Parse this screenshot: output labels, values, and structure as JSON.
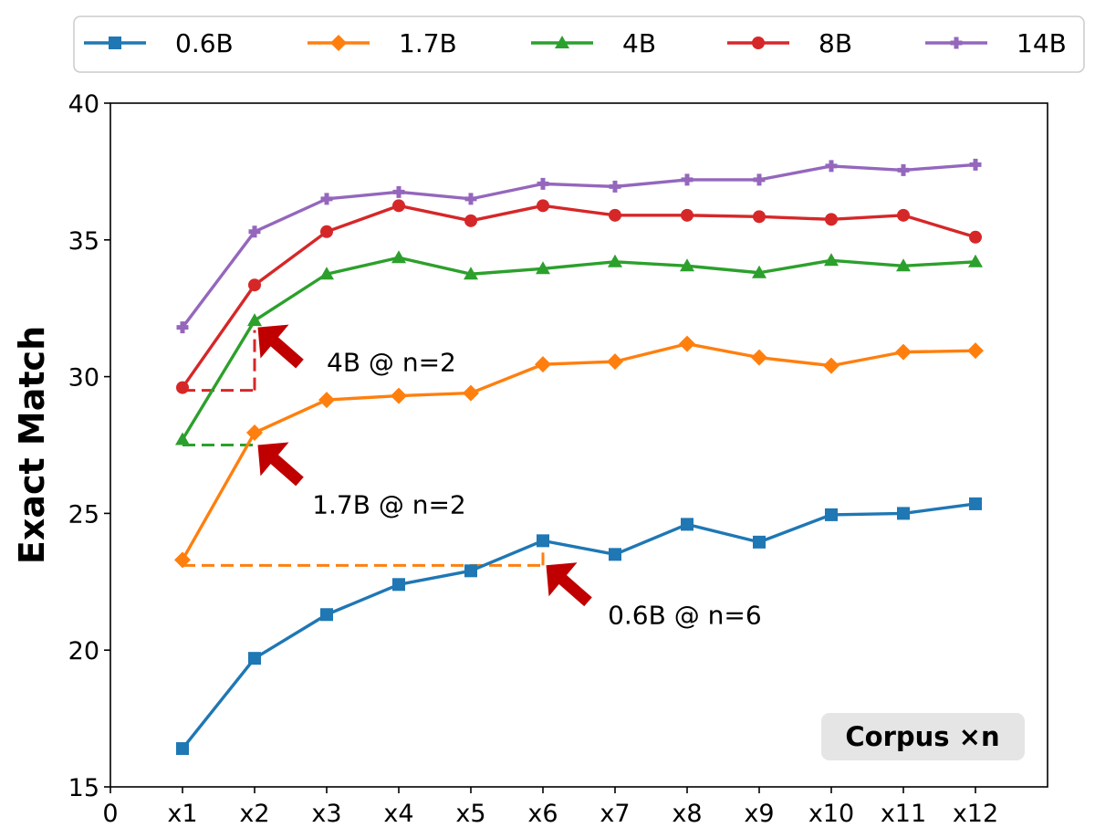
{
  "chart_data": {
    "type": "line",
    "title": "",
    "xlabel": "",
    "ylabel": "Exact Match",
    "x_ticks": [
      "0",
      "x1",
      "x2",
      "x3",
      "x4",
      "x5",
      "x6",
      "x7",
      "x8",
      "x9",
      "x10",
      "x11",
      "x12"
    ],
    "x": [
      1,
      2,
      3,
      4,
      5,
      6,
      7,
      8,
      9,
      10,
      11,
      12
    ],
    "xlim": [
      0,
      13
    ],
    "ylim": [
      15,
      40
    ],
    "y_ticks": [
      15,
      20,
      25,
      30,
      35,
      40
    ],
    "grid": false,
    "legend_position": "top, outside plot",
    "series": [
      {
        "name": "0.6B",
        "color": "#1f77b4",
        "marker": "square",
        "values": [
          16.4,
          19.7,
          21.3,
          22.4,
          22.9,
          24.0,
          23.5,
          24.6,
          23.95,
          24.95,
          25.0,
          25.35
        ]
      },
      {
        "name": "1.7B",
        "color": "#ff7f0e",
        "marker": "diamond",
        "values": [
          23.3,
          27.95,
          29.15,
          29.3,
          29.4,
          30.45,
          30.55,
          31.2,
          30.7,
          30.4,
          30.9,
          30.95
        ]
      },
      {
        "name": "4B",
        "color": "#2ca02c",
        "marker": "triangle",
        "values": [
          27.7,
          32.05,
          33.75,
          34.35,
          33.75,
          33.95,
          34.2,
          34.05,
          33.8,
          34.25,
          34.05,
          34.2
        ]
      },
      {
        "name": "8B",
        "color": "#d62728",
        "marker": "circle",
        "values": [
          29.6,
          33.35,
          35.3,
          36.25,
          35.7,
          36.25,
          35.9,
          35.9,
          35.85,
          35.75,
          35.9,
          35.1
        ]
      },
      {
        "name": "14B",
        "color": "#9467bd",
        "marker": "plus",
        "values": [
          31.8,
          35.3,
          36.5,
          36.75,
          36.5,
          37.05,
          36.95,
          37.2,
          37.2,
          37.7,
          37.55,
          37.75
        ]
      }
    ],
    "annotations": [
      {
        "text": "4B @ n=2",
        "color": "#d62728",
        "from_x": 1,
        "to_x": 2,
        "level": 29.5,
        "rise_to": 31.7,
        "pointer_at": [
          2.5,
          30.8
        ],
        "text_at": [
          3.0,
          30.2
        ]
      },
      {
        "text": "1.7B @ n=2",
        "color": "#2ca02c",
        "from_x": 1,
        "to_x": 2,
        "level": 27.5,
        "rise_to": null,
        "pointer_at": [
          2.5,
          26.5
        ],
        "text_at": [
          2.8,
          25.0
        ]
      },
      {
        "text": "0.6B @ n=6",
        "color": "#ff7f0e",
        "from_x": 1,
        "to_x": 6,
        "level": 23.1,
        "rise_to": 23.8,
        "pointer_at": [
          6.5,
          22.1
        ],
        "text_at": [
          6.9,
          20.95
        ]
      }
    ],
    "corpus_label": "Corpus ×n"
  }
}
